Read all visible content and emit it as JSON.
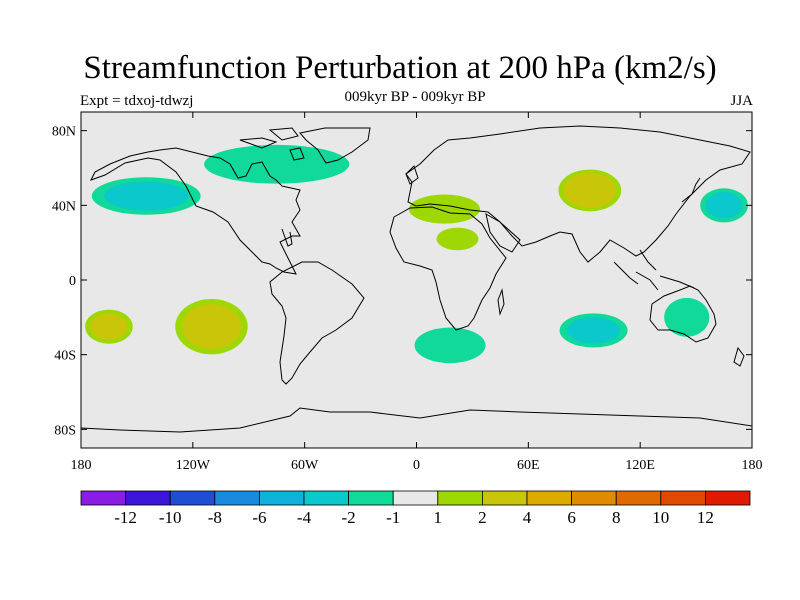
{
  "header": {
    "title": "Streamfunction Perturbation at 200 hPa (km2/s)",
    "subtitle": "009kyr BP - 009kyr BP",
    "experiment": "Expt = tdxoj-tdwzj",
    "season": "JJA"
  },
  "map": {
    "projection": "cylindrical-equidistant",
    "background_color": "#e8e8e8",
    "coastline_color": "#000000",
    "lon_range": [
      -180,
      180
    ],
    "lat_range": [
      -90,
      90
    ],
    "lat_ticks": [
      {
        "value": 80,
        "label": "80N"
      },
      {
        "value": 40,
        "label": "40N"
      },
      {
        "value": 0,
        "label": "0"
      },
      {
        "value": -40,
        "label": "40S"
      },
      {
        "value": -80,
        "label": "80S"
      }
    ],
    "lon_ticks": [
      {
        "value": -180,
        "label": "180"
      },
      {
        "value": -120,
        "label": "120W"
      },
      {
        "value": -60,
        "label": "60W"
      },
      {
        "value": 0,
        "label": "0"
      },
      {
        "value": 60,
        "label": "60E"
      },
      {
        "value": 120,
        "label": "120E"
      },
      {
        "value": 180,
        "label": "180"
      }
    ],
    "anomalies": [
      {
        "name": "ne-pacific-low",
        "lon": -145,
        "lat": 45,
        "peak": -2.5,
        "rx": 32,
        "ry": 11
      },
      {
        "name": "n-america-arctic-low",
        "lon": -75,
        "lat": 62,
        "peak": -1.5,
        "rx": 45,
        "ry": 12
      },
      {
        "name": "siberia-high",
        "lon": 93,
        "lat": 48,
        "peak": 3.5,
        "rx": 18,
        "ry": 12
      },
      {
        "name": "mediterranean-high",
        "lon": 15,
        "lat": 38,
        "peak": 1.5,
        "rx": 22,
        "ry": 9
      },
      {
        "name": "n-africa-high",
        "lon": 22,
        "lat": 22,
        "peak": 1.5,
        "rx": 13,
        "ry": 7
      },
      {
        "name": "w-pacific-low",
        "lon": 165,
        "lat": 40,
        "peak": -2.5,
        "rx": 14,
        "ry": 10
      },
      {
        "name": "se-pacific-high",
        "lon": -110,
        "lat": -25,
        "peak": 3.0,
        "rx": 21,
        "ry": 16
      },
      {
        "name": "s-pacific-high",
        "lon": -165,
        "lat": -25,
        "peak": 2.5,
        "rx": 14,
        "ry": 10
      },
      {
        "name": "s-atlantic-low",
        "lon": 18,
        "lat": -35,
        "peak": -1.5,
        "rx": 22,
        "ry": 11
      },
      {
        "name": "indian-ocean-low",
        "lon": 95,
        "lat": -27,
        "peak": -2.5,
        "rx": 20,
        "ry": 10
      },
      {
        "name": "australia-low",
        "lon": 145,
        "lat": -20,
        "peak": -1.5,
        "rx": 14,
        "ry": 12
      }
    ]
  },
  "colorbar": {
    "colors": [
      "#8a1de3",
      "#3b16d8",
      "#1e4fd2",
      "#1a8bdc",
      "#0fb2d8",
      "#0ac8cb",
      "#10d99a",
      "#e8e8e8",
      "#9dd804",
      "#c9c60a",
      "#ddaa00",
      "#e08a00",
      "#e06a00",
      "#e04a00",
      "#e01a00"
    ],
    "labels": [
      "-12",
      "-10",
      "-8",
      "-6",
      "-4",
      "-2",
      "-1",
      "1",
      "2",
      "4",
      "6",
      "8",
      "10",
      "12"
    ]
  }
}
